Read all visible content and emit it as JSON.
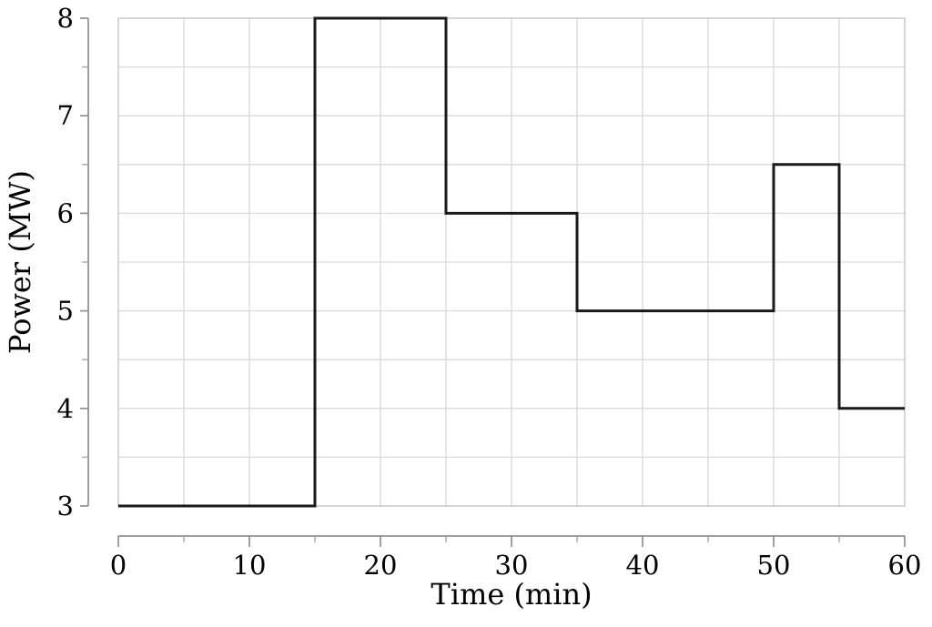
{
  "chart_data": {
    "type": "step",
    "title": "",
    "xlabel": "Time (min)",
    "ylabel": "Power (MW)",
    "xlim": [
      0,
      60
    ],
    "ylim": [
      3,
      8
    ],
    "x_major_ticks": [
      0,
      10,
      20,
      30,
      40,
      50,
      60
    ],
    "x_minor_tick_step": 5,
    "y_major_ticks": [
      3,
      4,
      5,
      6,
      7,
      8
    ],
    "y_minor_tick_step": 0.5,
    "grid": "minor",
    "legend": "none",
    "steps": [
      {
        "start_min": 0,
        "end_min": 15,
        "power_mw": 3
      },
      {
        "start_min": 15,
        "end_min": 25,
        "power_mw": 8
      },
      {
        "start_min": 25,
        "end_min": 35,
        "power_mw": 6
      },
      {
        "start_min": 35,
        "end_min": 50,
        "power_mw": 5
      },
      {
        "start_min": 50,
        "end_min": 55,
        "power_mw": 6.5
      },
      {
        "start_min": 55,
        "end_min": 60,
        "power_mw": 4
      }
    ]
  },
  "colors": {
    "line": "#1a1a1a",
    "grid": "#d9d9d9",
    "plot_border": "#c6c6c6",
    "axis": "#8f8f8f",
    "minor_tick": "#a6a6a6",
    "text": "#000000",
    "background": "#ffffff"
  }
}
